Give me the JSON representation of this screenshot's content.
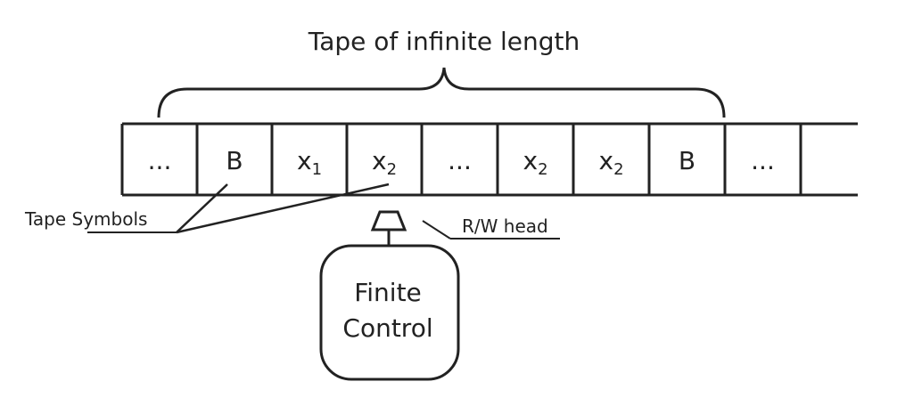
{
  "title": "Tape of infinite length",
  "tape": {
    "cells": [
      {
        "main": "...",
        "sub": ""
      },
      {
        "main": "B",
        "sub": ""
      },
      {
        "main": "x",
        "sub": "1"
      },
      {
        "main": "x",
        "sub": "2"
      },
      {
        "main": "...",
        "sub": ""
      },
      {
        "main": "x",
        "sub": "2"
      },
      {
        "main": "x",
        "sub": "2"
      },
      {
        "main": "B",
        "sub": ""
      },
      {
        "main": "...",
        "sub": ""
      },
      {
        "main": "",
        "sub": ""
      }
    ]
  },
  "labels": {
    "tape_symbols": "Tape Symbols",
    "rw_head": "R/W head"
  },
  "control": {
    "line1": "Finite",
    "line2": "Control"
  }
}
